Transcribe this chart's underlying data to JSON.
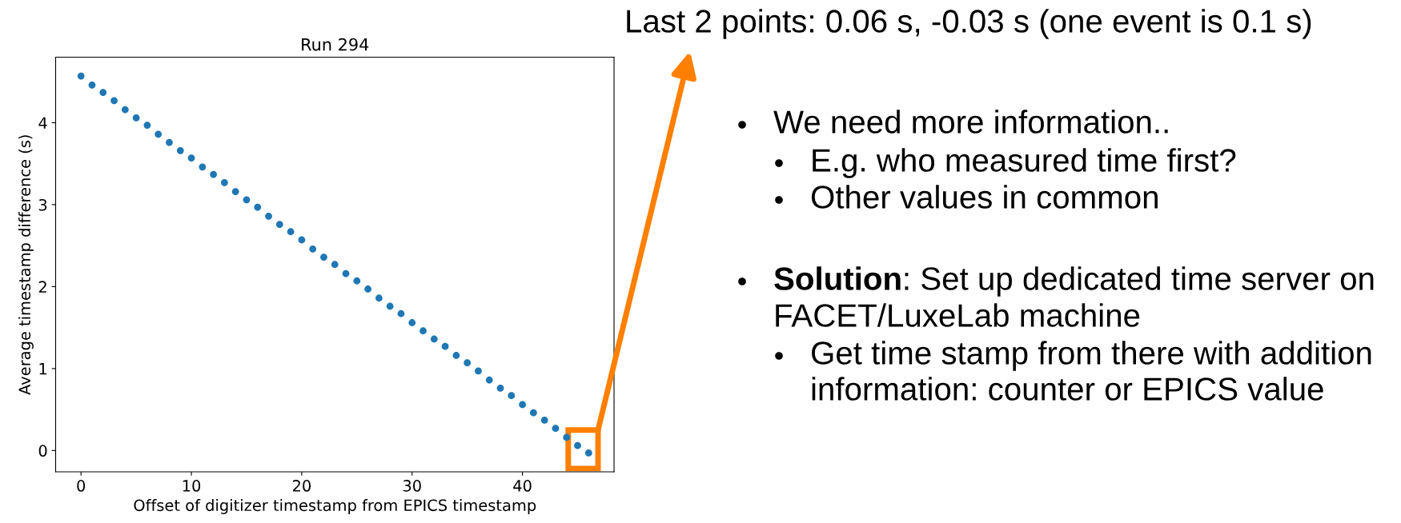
{
  "chart_data": {
    "type": "scatter",
    "title": "Run 294",
    "xlabel": "Offset of digitizer timestamp from EPICS timestamp",
    "ylabel": "Average timestamp difference (s)",
    "x": [
      0,
      1,
      2,
      3,
      4,
      5,
      6,
      7,
      8,
      9,
      10,
      11,
      12,
      13,
      14,
      15,
      16,
      17,
      18,
      19,
      20,
      21,
      22,
      23,
      24,
      25,
      26,
      27,
      28,
      29,
      30,
      31,
      32,
      33,
      34,
      35,
      36,
      37,
      38,
      39,
      40,
      41,
      42,
      43,
      44,
      45,
      46
    ],
    "series": [
      {
        "color": "#1f77b4",
        "values": [
          4.57,
          4.46,
          4.37,
          4.27,
          4.16,
          4.06,
          3.97,
          3.86,
          3.76,
          3.66,
          3.57,
          3.46,
          3.37,
          3.27,
          3.16,
          3.06,
          2.97,
          2.86,
          2.76,
          2.67,
          2.57,
          2.46,
          2.36,
          2.27,
          2.16,
          2.07,
          1.97,
          1.86,
          1.76,
          1.67,
          1.56,
          1.46,
          1.36,
          1.27,
          1.16,
          1.07,
          0.97,
          0.86,
          0.76,
          0.67,
          0.56,
          0.46,
          0.37,
          0.27,
          0.16,
          0.06,
          -0.03
        ]
      }
    ],
    "xlim": [
      -2.3,
      48.3
    ],
    "ylim": [
      -0.26,
      4.8
    ],
    "xticks": [
      0,
      10,
      20,
      30,
      40
    ],
    "yticks": [
      0,
      1,
      2,
      3,
      4
    ],
    "marker": "circle",
    "grid": false,
    "legend": false,
    "annotations": [
      "Last 2 points: 0.06 s, -0.03 s (one event is 0.1 s)",
      "We need more information..",
      "E.g. who measured time first?",
      "Other values in common",
      "Solution",
      ": Set up dedicated time server on",
      "FACET/LuxeLab machine",
      "Get time stamp from there with addition",
      "information: counter or EPICS value"
    ]
  }
}
